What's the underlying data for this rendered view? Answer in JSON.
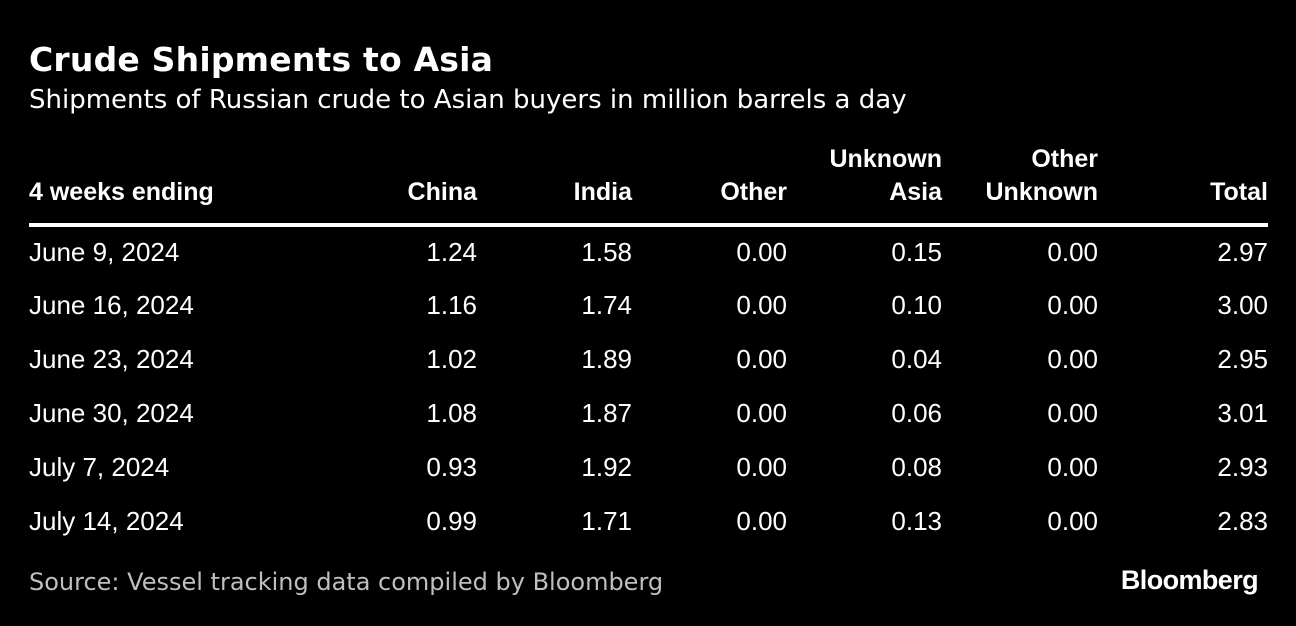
{
  "chart_data": {
    "type": "table",
    "title": "Crude Shipments to Asia",
    "subtitle": "Shipments of Russian crude to Asian buyers in million barrels a day",
    "columns": [
      [
        "4 weeks ending"
      ],
      [
        "China"
      ],
      [
        "India"
      ],
      [
        "Other"
      ],
      [
        "Unknown",
        "Asia"
      ],
      [
        "Other",
        "Unknown"
      ],
      [
        "Total"
      ]
    ],
    "rows": [
      [
        "June 9, 2024",
        "1.24",
        "1.58",
        "0.00",
        "0.15",
        "0.00",
        "2.97"
      ],
      [
        "June 16, 2024",
        "1.16",
        "1.74",
        "0.00",
        "0.10",
        "0.00",
        "3.00"
      ],
      [
        "June 23, 2024",
        "1.02",
        "1.89",
        "0.00",
        "0.04",
        "0.00",
        "2.95"
      ],
      [
        "June 30, 2024",
        "1.08",
        "1.87",
        "0.00",
        "0.06",
        "0.00",
        "3.01"
      ],
      [
        "July 7, 2024",
        "0.93",
        "1.92",
        "0.00",
        "0.08",
        "0.00",
        "2.93"
      ],
      [
        "July 14, 2024",
        "0.99",
        "1.71",
        "0.00",
        "0.13",
        "0.00",
        "2.83"
      ]
    ]
  },
  "footer": {
    "source": "Source: Vessel tracking data compiled by Bloomberg",
    "brand": "Bloomberg"
  },
  "colors": {
    "background": "#000000",
    "text": "#ffffff",
    "source_text": "#bfbfbf"
  }
}
